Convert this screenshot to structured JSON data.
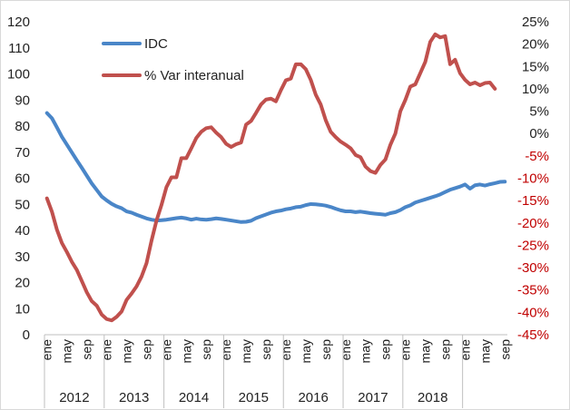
{
  "chart_data": {
    "type": "line",
    "legend": {
      "placement": "top-left"
    },
    "grid": false,
    "y_left": {
      "ylim": [
        0,
        120
      ],
      "ticks": [
        "0",
        "10",
        "20",
        "30",
        "40",
        "50",
        "60",
        "70",
        "80",
        "90",
        "100",
        "110",
        "120"
      ]
    },
    "y_right": {
      "ylim": [
        -45,
        25
      ],
      "ticks": [
        "25%",
        "20%",
        "15%",
        "10%",
        "5%",
        "0%",
        "-5%",
        "-10%",
        "-15%",
        "-20%",
        "-25%",
        "-30%",
        "-35%",
        "-40%",
        "-45%"
      ],
      "negative_color": "#c00000",
      "positive_color": "#222222"
    },
    "x_month_labels": [
      "ene",
      "may",
      "sep"
    ],
    "years": [
      "2012",
      "2013",
      "2014",
      "2015",
      "2016",
      "2017",
      "2018"
    ],
    "series": [
      {
        "name": "IDC",
        "axis": "left",
        "color": "#4a86c8",
        "values": [
          85.0,
          83.0,
          79.5,
          75.9,
          72.9,
          69.9,
          66.9,
          64.0,
          61.0,
          58.0,
          55.5,
          53.0,
          51.5,
          50.2,
          49.2,
          48.5,
          47.3,
          46.8,
          46.0,
          45.3,
          44.6,
          44.1,
          43.8,
          43.9,
          44.1,
          44.4,
          44.7,
          44.9,
          44.6,
          44.1,
          44.5,
          44.2,
          44.1,
          44.3,
          44.6,
          44.4,
          44.1,
          43.8,
          43.5,
          43.2,
          43.3,
          43.7,
          44.7,
          45.4,
          46.1,
          46.8,
          47.3,
          47.6,
          48.1,
          48.4,
          48.9,
          49.1,
          49.7,
          50.1,
          50.0,
          49.8,
          49.5,
          49.0,
          48.3,
          47.7,
          47.3,
          47.3,
          47.0,
          47.2,
          46.9,
          46.6,
          46.4,
          46.2,
          46.0,
          46.6,
          47.0,
          47.8,
          48.9,
          49.6,
          50.7,
          51.3,
          51.9,
          52.5,
          53.1,
          53.8,
          54.7,
          55.6,
          56.2,
          56.8,
          57.6,
          56.0,
          57.3,
          57.6,
          57.2,
          57.7,
          58.1,
          58.6,
          58.7
        ]
      },
      {
        "name": "% Var interanual",
        "axis": "right",
        "color": "#c0504d",
        "values": [
          -14.5,
          -17.5,
          -21.5,
          -24.5,
          -26.5,
          -28.7,
          -30.5,
          -33.0,
          -35.5,
          -37.5,
          -38.5,
          -40.5,
          -41.5,
          -41.8,
          -41.0,
          -39.8,
          -37.2,
          -35.8,
          -34.2,
          -32.0,
          -29.0,
          -24.0,
          -19.5,
          -16.0,
          -12.0,
          -9.8,
          -9.8,
          -5.5,
          -5.5,
          -3.3,
          -1.0,
          0.4,
          1.2,
          1.4,
          0.2,
          -0.8,
          -2.3,
          -3.0,
          -2.4,
          -2.0,
          2.0,
          2.8,
          4.6,
          6.5,
          7.6,
          7.8,
          7.2,
          9.7,
          11.9,
          12.3,
          15.5,
          15.5,
          14.4,
          12.0,
          8.7,
          6.5,
          3.0,
          0.4,
          -0.8,
          -1.8,
          -2.5,
          -3.3,
          -4.8,
          -5.3,
          -7.4,
          -8.4,
          -8.8,
          -7.0,
          -5.8,
          -2.5,
          0.0,
          5.0,
          7.5,
          10.5,
          11.0,
          13.5,
          16.0,
          20.5,
          22.2,
          21.5,
          21.8,
          15.5,
          16.5,
          13.5,
          12.0,
          11.0,
          11.4,
          10.8,
          11.3,
          11.4,
          10.0
        ]
      }
    ]
  }
}
